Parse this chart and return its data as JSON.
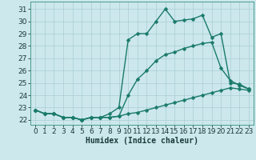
{
  "xlabel": "Humidex (Indice chaleur)",
  "bg_color": "#cce8ec",
  "grid_color": "#aacdd4",
  "line_color": "#1a7a6a",
  "xlim": [
    -0.5,
    23.5
  ],
  "ylim": [
    21.6,
    31.6
  ],
  "yticks": [
    22,
    23,
    24,
    25,
    26,
    27,
    28,
    29,
    30,
    31
  ],
  "xticks": [
    0,
    1,
    2,
    3,
    4,
    5,
    6,
    7,
    8,
    9,
    10,
    11,
    12,
    13,
    14,
    15,
    16,
    17,
    18,
    19,
    20,
    21,
    22,
    23
  ],
  "y_bottom": [
    22.8,
    22.5,
    22.5,
    22.2,
    22.2,
    22.0,
    22.2,
    22.2,
    22.2,
    22.3,
    22.5,
    22.6,
    22.8,
    23.0,
    23.2,
    23.4,
    23.6,
    23.8,
    24.0,
    24.2,
    24.4,
    24.6,
    24.5,
    24.4
  ],
  "y_mid": [
    22.8,
    22.5,
    22.5,
    22.2,
    22.2,
    22.0,
    22.2,
    22.2,
    22.2,
    22.3,
    24.0,
    25.3,
    26.0,
    26.8,
    27.3,
    27.5,
    27.8,
    28.0,
    28.2,
    28.3,
    26.2,
    25.2,
    24.8,
    24.5
  ],
  "y_top": [
    22.8,
    22.5,
    22.5,
    22.2,
    22.2,
    22.0,
    22.2,
    22.2,
    22.5,
    23.0,
    28.5,
    29.0,
    29.0,
    30.0,
    31.0,
    30.0,
    30.1,
    30.2,
    30.5,
    28.7,
    29.0,
    25.0,
    24.9,
    24.5
  ],
  "marker_size": 2.5,
  "line_width": 1.0,
  "font_size": 7,
  "tick_font_size": 6.5
}
